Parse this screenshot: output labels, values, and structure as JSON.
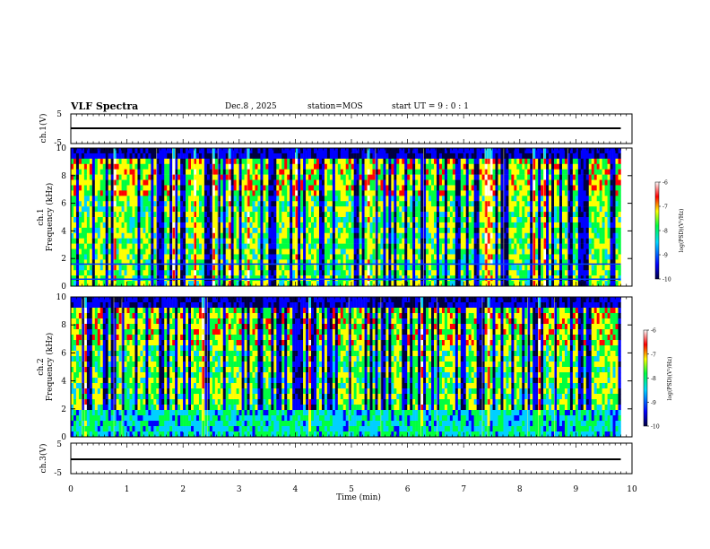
{
  "header": {
    "title": "VLF Spectra",
    "date": "Dec.8 , 2025",
    "station": "station=MOS",
    "start_ut": "start UT = 9 : 0 : 1"
  },
  "chart_data": [
    {
      "type": "line",
      "name": "ch1-waveform",
      "ylabel": "ch.1(V)",
      "ylim": [
        -5,
        5
      ],
      "yticks": [
        5,
        -5
      ],
      "x": [
        0,
        9.8
      ],
      "values": [
        0,
        0
      ]
    },
    {
      "type": "heatmap",
      "name": "ch1-spectrogram",
      "ylabel": "ch.1\nFrequency (kHz)",
      "ylabel_line1": "ch.1",
      "ylabel_line2": "Frequency (kHz)",
      "ylim": [
        0,
        10
      ],
      "yticks": [
        0,
        2,
        4,
        6,
        8,
        10
      ],
      "xlim": [
        0,
        10
      ],
      "data_end_min": 9.8,
      "colorbar": {
        "label": "log(PSD)(V²/Hz)",
        "range": [
          -10,
          -6
        ],
        "ticks": [
          "-6",
          "-7",
          "-8",
          "-9",
          "-10"
        ]
      },
      "interference_lines_khz": [
        1.6,
        0.5
      ]
    },
    {
      "type": "heatmap",
      "name": "ch2-spectrogram",
      "ylabel": "ch.2\nFrequency (kHz)",
      "ylabel_line1": "ch.2",
      "ylabel_line2": "Frequency (kHz)",
      "ylim": [
        0,
        10
      ],
      "yticks": [
        0,
        2,
        4,
        6,
        8,
        10
      ],
      "xlim": [
        0,
        10
      ],
      "data_end_min": 9.8,
      "colorbar": {
        "label": "log(PSD)(V²/Hz)",
        "range": [
          -10,
          -6
        ],
        "ticks": [
          "-6",
          "-7",
          "-8",
          "-9",
          "-10"
        ]
      }
    },
    {
      "type": "line",
      "name": "ch3-waveform",
      "ylabel": "ch.3(V)",
      "ylim": [
        -5,
        5
      ],
      "yticks": [
        5,
        -5
      ],
      "x": [
        0,
        9.8
      ],
      "values": [
        0,
        0
      ]
    }
  ],
  "x_axis": {
    "label": "Time (min)",
    "range": [
      0,
      10
    ],
    "ticks": [
      "0",
      "1",
      "2",
      "3",
      "4",
      "5",
      "6",
      "7",
      "8",
      "9",
      "10"
    ]
  },
  "colors": {
    "axis": "#000000",
    "colormap": [
      "#000040",
      "#0000ff",
      "#00d0ff",
      "#00ff40",
      "#ffff00",
      "#ff0000",
      "#ffffff"
    ]
  }
}
